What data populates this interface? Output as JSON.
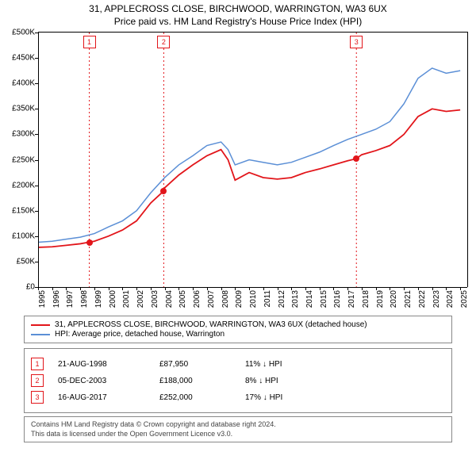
{
  "title_line1": "31, APPLECROSS CLOSE, BIRCHWOOD, WARRINGTON, WA3 6UX",
  "title_line2": "Price paid vs. HM Land Registry's House Price Index (HPI)",
  "chart": {
    "type": "line",
    "background_color": "#ffffff",
    "x_min": 1995,
    "x_max": 2025.5,
    "y_min": 0,
    "y_max": 500000,
    "ytick_step": 50000,
    "ytick_prefix": "£",
    "ytick_suffix": "K",
    "xticks": [
      1995,
      1996,
      1997,
      1998,
      1999,
      2000,
      2001,
      2002,
      2003,
      2004,
      2005,
      2006,
      2007,
      2008,
      2009,
      2010,
      2011,
      2012,
      2013,
      2014,
      2015,
      2016,
      2017,
      2018,
      2019,
      2020,
      2021,
      2022,
      2023,
      2024,
      2025
    ],
    "axis_color": "#000000",
    "series": [
      {
        "name": "property",
        "label": "31, APPLECROSS CLOSE, BIRCHWOOD, WARRINGTON, WA3 6UX (detached house)",
        "color": "#e2151a",
        "width": 1.8,
        "data": [
          [
            1995,
            78000
          ],
          [
            1996,
            79000
          ],
          [
            1997,
            82000
          ],
          [
            1998,
            85000
          ],
          [
            1998.6,
            87950
          ],
          [
            1999,
            90000
          ],
          [
            2000,
            100000
          ],
          [
            2001,
            112000
          ],
          [
            2002,
            130000
          ],
          [
            2003,
            165000
          ],
          [
            2003.9,
            188000
          ],
          [
            2004,
            195000
          ],
          [
            2005,
            220000
          ],
          [
            2006,
            240000
          ],
          [
            2007,
            258000
          ],
          [
            2008,
            270000
          ],
          [
            2008.5,
            250000
          ],
          [
            2009,
            210000
          ],
          [
            2010,
            225000
          ],
          [
            2011,
            215000
          ],
          [
            2012,
            212000
          ],
          [
            2013,
            215000
          ],
          [
            2014,
            225000
          ],
          [
            2015,
            232000
          ],
          [
            2016,
            240000
          ],
          [
            2017,
            248000
          ],
          [
            2017.6,
            252000
          ],
          [
            2018,
            260000
          ],
          [
            2019,
            268000
          ],
          [
            2020,
            278000
          ],
          [
            2021,
            300000
          ],
          [
            2022,
            335000
          ],
          [
            2023,
            350000
          ],
          [
            2024,
            345000
          ],
          [
            2025,
            348000
          ]
        ]
      },
      {
        "name": "hpi",
        "label": "HPI: Average price, detached house, Warrington",
        "color": "#5b8fd6",
        "width": 1.5,
        "data": [
          [
            1995,
            88000
          ],
          [
            1996,
            90000
          ],
          [
            1997,
            94000
          ],
          [
            1998,
            98000
          ],
          [
            1999,
            105000
          ],
          [
            2000,
            118000
          ],
          [
            2001,
            130000
          ],
          [
            2002,
            150000
          ],
          [
            2003,
            185000
          ],
          [
            2004,
            215000
          ],
          [
            2005,
            240000
          ],
          [
            2006,
            258000
          ],
          [
            2007,
            278000
          ],
          [
            2008,
            285000
          ],
          [
            2008.5,
            270000
          ],
          [
            2009,
            240000
          ],
          [
            2010,
            250000
          ],
          [
            2011,
            245000
          ],
          [
            2012,
            240000
          ],
          [
            2013,
            245000
          ],
          [
            2014,
            255000
          ],
          [
            2015,
            265000
          ],
          [
            2016,
            278000
          ],
          [
            2017,
            290000
          ],
          [
            2018,
            300000
          ],
          [
            2019,
            310000
          ],
          [
            2020,
            325000
          ],
          [
            2021,
            360000
          ],
          [
            2022,
            410000
          ],
          [
            2023,
            430000
          ],
          [
            2024,
            420000
          ],
          [
            2025,
            425000
          ]
        ]
      }
    ],
    "transactions": [
      {
        "n": "1",
        "year": 1998.64,
        "date": "21-AUG-1998",
        "price": "£87,950",
        "price_val": 87950,
        "diff": "11% ↓ HPI",
        "color": "#e2151a"
      },
      {
        "n": "2",
        "year": 2003.93,
        "date": "05-DEC-2003",
        "price": "£188,000",
        "price_val": 188000,
        "diff": "8% ↓ HPI",
        "color": "#e2151a"
      },
      {
        "n": "3",
        "year": 2017.62,
        "date": "16-AUG-2017",
        "price": "£252,000",
        "price_val": 252000,
        "diff": "17% ↓ HPI",
        "color": "#e2151a"
      }
    ],
    "vline_color": "#e2151a",
    "vline_dash": "2,3"
  },
  "footer_line1": "Contains HM Land Registry data © Crown copyright and database right 2024.",
  "footer_line2": "This data is licensed under the Open Government Licence v3.0."
}
